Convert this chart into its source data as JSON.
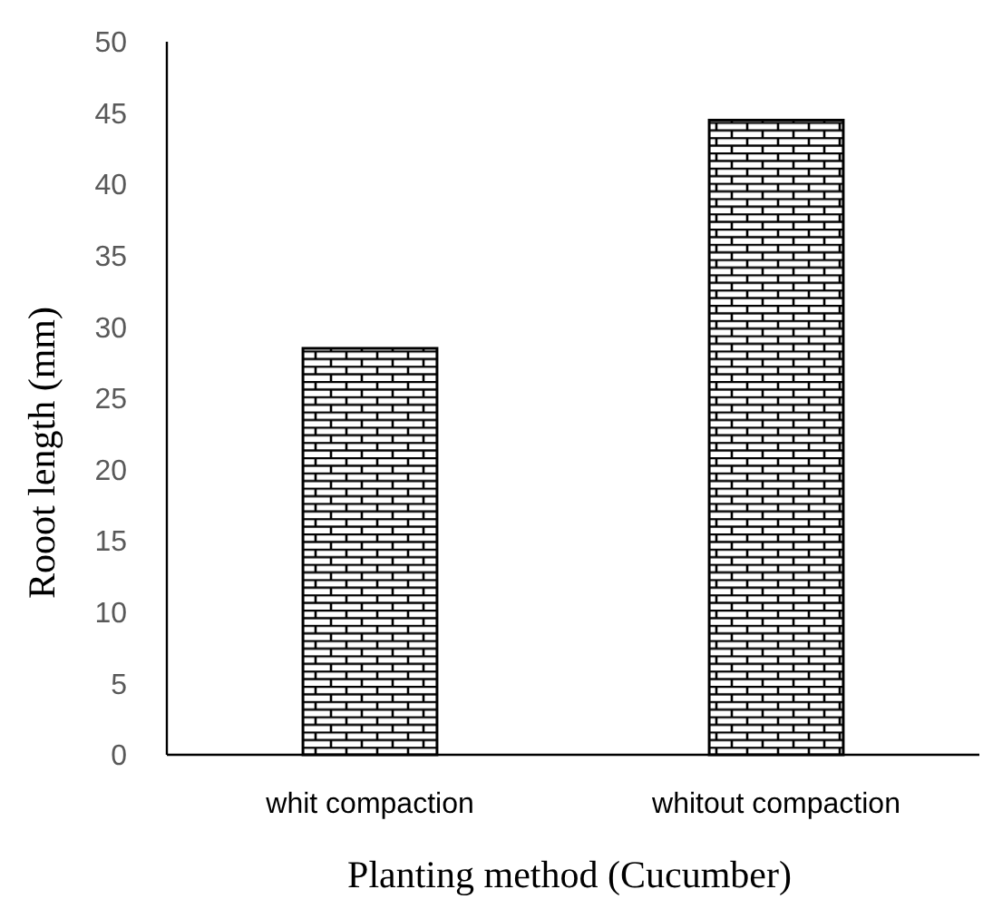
{
  "chart_data": {
    "type": "bar",
    "xlabel": "Planting method (Cucumber)",
    "ylabel": "Rooot length (mm)",
    "categories": [
      "whit compaction",
      "whitout compaction"
    ],
    "values": [
      28.5,
      44.5
    ],
    "color": "#000000",
    "ylim": [
      0,
      50
    ],
    "yticks": [
      0,
      5,
      10,
      15,
      20,
      25,
      30,
      35,
      40,
      45,
      50
    ],
    "grid": false
  }
}
